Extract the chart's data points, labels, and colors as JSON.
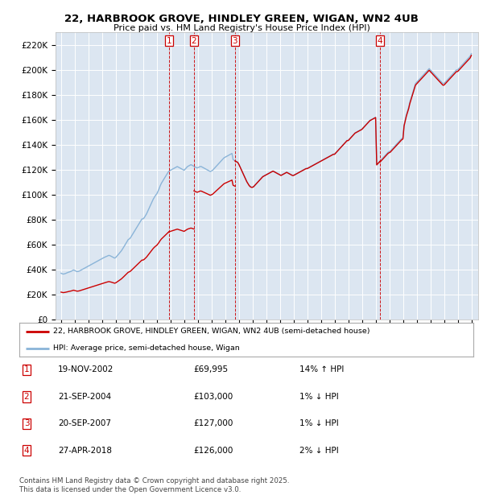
{
  "title": "22, HARBROOK GROVE, HINDLEY GREEN, WIGAN, WN2 4UB",
  "subtitle": "Price paid vs. HM Land Registry's House Price Index (HPI)",
  "background_color": "#dce6f1",
  "ylim": [
    0,
    230000
  ],
  "yticks": [
    0,
    20000,
    40000,
    60000,
    80000,
    100000,
    120000,
    140000,
    160000,
    180000,
    200000,
    220000
  ],
  "ytick_labels": [
    "£0",
    "£20K",
    "£40K",
    "£60K",
    "£80K",
    "£100K",
    "£120K",
    "£140K",
    "£160K",
    "£180K",
    "£200K",
    "£220K"
  ],
  "hpi_color": "#8ab4d8",
  "sale_color": "#cc0000",
  "vline_color": "#cc0000",
  "xlim_min": 1994.6,
  "xlim_max": 2025.5,
  "transaction_markers": [
    {
      "num": 1,
      "date_str": "19-NOV-2002",
      "date_x": 2002.88,
      "price": 69995,
      "pct": "14%",
      "dir": "↑"
    },
    {
      "num": 2,
      "date_str": "21-SEP-2004",
      "date_x": 2004.72,
      "price": 103000,
      "pct": "1%",
      "dir": "↓"
    },
    {
      "num": 3,
      "date_str": "20-SEP-2007",
      "date_x": 2007.72,
      "price": 127000,
      "pct": "1%",
      "dir": "↓"
    },
    {
      "num": 4,
      "date_str": "27-APR-2018",
      "date_x": 2018.32,
      "price": 126000,
      "pct": "2%",
      "dir": "↓"
    }
  ],
  "legend_label_sale": "22, HARBROOK GROVE, HINDLEY GREEN, WIGAN, WN2 4UB (semi-detached house)",
  "legend_label_hpi": "HPI: Average price, semi-detached house, Wigan",
  "footer": "Contains HM Land Registry data © Crown copyright and database right 2025.\nThis data is licensed under the Open Government Licence v3.0.",
  "hpi_raw": {
    "t": [
      1995.0,
      1995.083,
      1995.167,
      1995.25,
      1995.333,
      1995.417,
      1995.5,
      1995.583,
      1995.667,
      1995.75,
      1995.833,
      1995.917,
      1996.0,
      1996.083,
      1996.167,
      1996.25,
      1996.333,
      1996.417,
      1996.5,
      1996.583,
      1996.667,
      1996.75,
      1996.833,
      1996.917,
      1997.0,
      1997.083,
      1997.167,
      1997.25,
      1997.333,
      1997.417,
      1997.5,
      1997.583,
      1997.667,
      1997.75,
      1997.833,
      1997.917,
      1998.0,
      1998.083,
      1998.167,
      1998.25,
      1998.333,
      1998.417,
      1998.5,
      1998.583,
      1998.667,
      1998.75,
      1998.833,
      1998.917,
      1999.0,
      1999.083,
      1999.167,
      1999.25,
      1999.333,
      1999.417,
      1999.5,
      1999.583,
      1999.667,
      1999.75,
      1999.833,
      1999.917,
      2000.0,
      2000.083,
      2000.167,
      2000.25,
      2000.333,
      2000.417,
      2000.5,
      2000.583,
      2000.667,
      2000.75,
      2000.833,
      2000.917,
      2001.0,
      2001.083,
      2001.167,
      2001.25,
      2001.333,
      2001.417,
      2001.5,
      2001.583,
      2001.667,
      2001.75,
      2001.833,
      2001.917,
      2002.0,
      2002.083,
      2002.167,
      2002.25,
      2002.333,
      2002.417,
      2002.5,
      2002.583,
      2002.667,
      2002.75,
      2002.833,
      2002.917,
      2003.0,
      2003.083,
      2003.167,
      2003.25,
      2003.333,
      2003.417,
      2003.5,
      2003.583,
      2003.667,
      2003.75,
      2003.833,
      2003.917,
      2004.0,
      2004.083,
      2004.167,
      2004.25,
      2004.333,
      2004.417,
      2004.5,
      2004.583,
      2004.667,
      2004.75,
      2004.833,
      2004.917,
      2005.0,
      2005.083,
      2005.167,
      2005.25,
      2005.333,
      2005.417,
      2005.5,
      2005.583,
      2005.667,
      2005.75,
      2005.833,
      2005.917,
      2006.0,
      2006.083,
      2006.167,
      2006.25,
      2006.333,
      2006.417,
      2006.5,
      2006.583,
      2006.667,
      2006.75,
      2006.833,
      2006.917,
      2007.0,
      2007.083,
      2007.167,
      2007.25,
      2007.333,
      2007.417,
      2007.5,
      2007.583,
      2007.667,
      2007.75,
      2007.833,
      2007.917,
      2008.0,
      2008.083,
      2008.167,
      2008.25,
      2008.333,
      2008.417,
      2008.5,
      2008.583,
      2008.667,
      2008.75,
      2008.833,
      2008.917,
      2009.0,
      2009.083,
      2009.167,
      2009.25,
      2009.333,
      2009.417,
      2009.5,
      2009.583,
      2009.667,
      2009.75,
      2009.833,
      2009.917,
      2010.0,
      2010.083,
      2010.167,
      2010.25,
      2010.333,
      2010.417,
      2010.5,
      2010.583,
      2010.667,
      2010.75,
      2010.833,
      2010.917,
      2011.0,
      2011.083,
      2011.167,
      2011.25,
      2011.333,
      2011.417,
      2011.5,
      2011.583,
      2011.667,
      2011.75,
      2011.833,
      2011.917,
      2012.0,
      2012.083,
      2012.167,
      2012.25,
      2012.333,
      2012.417,
      2012.5,
      2012.583,
      2012.667,
      2012.75,
      2012.833,
      2012.917,
      2013.0,
      2013.083,
      2013.167,
      2013.25,
      2013.333,
      2013.417,
      2013.5,
      2013.583,
      2013.667,
      2013.75,
      2013.833,
      2013.917,
      2014.0,
      2014.083,
      2014.167,
      2014.25,
      2014.333,
      2014.417,
      2014.5,
      2014.583,
      2014.667,
      2014.75,
      2014.833,
      2014.917,
      2015.0,
      2015.083,
      2015.167,
      2015.25,
      2015.333,
      2015.417,
      2015.5,
      2015.583,
      2015.667,
      2015.75,
      2015.833,
      2015.917,
      2016.0,
      2016.083,
      2016.167,
      2016.25,
      2016.333,
      2016.417,
      2016.5,
      2016.583,
      2016.667,
      2016.75,
      2016.833,
      2016.917,
      2017.0,
      2017.083,
      2017.167,
      2017.25,
      2017.333,
      2017.417,
      2017.5,
      2017.583,
      2017.667,
      2017.75,
      2017.833,
      2017.917,
      2018.0,
      2018.083,
      2018.167,
      2018.25,
      2018.333,
      2018.417,
      2018.5,
      2018.583,
      2018.667,
      2018.75,
      2018.833,
      2018.917,
      2019.0,
      2019.083,
      2019.167,
      2019.25,
      2019.333,
      2019.417,
      2019.5,
      2019.583,
      2019.667,
      2019.75,
      2019.833,
      2019.917,
      2020.0,
      2020.083,
      2020.167,
      2020.25,
      2020.333,
      2020.417,
      2020.5,
      2020.583,
      2020.667,
      2020.75,
      2020.833,
      2020.917,
      2021.0,
      2021.083,
      2021.167,
      2021.25,
      2021.333,
      2021.417,
      2021.5,
      2021.583,
      2021.667,
      2021.75,
      2021.833,
      2021.917,
      2022.0,
      2022.083,
      2022.167,
      2022.25,
      2022.333,
      2022.417,
      2022.5,
      2022.583,
      2022.667,
      2022.75,
      2022.833,
      2022.917,
      2023.0,
      2023.083,
      2023.167,
      2023.25,
      2023.333,
      2023.417,
      2023.5,
      2023.583,
      2023.667,
      2023.75,
      2023.833,
      2023.917,
      2024.0,
      2024.083,
      2024.167,
      2024.25,
      2024.333,
      2024.417,
      2024.5,
      2024.583,
      2024.667,
      2024.75,
      2024.833,
      2024.917,
      2025.0
    ],
    "v": [
      37000,
      36600,
      36300,
      36500,
      36800,
      37200,
      37600,
      37900,
      38200,
      38600,
      39100,
      39600,
      39200,
      38700,
      38300,
      38400,
      38700,
      39200,
      39700,
      40200,
      40700,
      41200,
      41700,
      42200,
      42700,
      43200,
      43700,
      44200,
      44700,
      45200,
      45700,
      46200,
      46700,
      47200,
      47700,
      48200,
      48700,
      49200,
      49700,
      50100,
      50500,
      50900,
      51300,
      51000,
      50600,
      50100,
      49600,
      49100,
      49600,
      50600,
      51700,
      52800,
      53900,
      55000,
      56400,
      57900,
      59400,
      61000,
      62500,
      64000,
      64500,
      65500,
      67000,
      68500,
      70000,
      71500,
      73000,
      74500,
      76000,
      77500,
      79000,
      80500,
      80500,
      81500,
      83000,
      84500,
      86500,
      88500,
      90500,
      92500,
      94500,
      96500,
      98000,
      99500,
      100500,
      102500,
      104500,
      107000,
      109000,
      110500,
      112000,
      113500,
      115000,
      116500,
      118000,
      119000,
      119500,
      120000,
      120500,
      121000,
      121500,
      122000,
      122500,
      122000,
      121500,
      121000,
      120500,
      120000,
      119500,
      120500,
      121500,
      122500,
      123000,
      123500,
      124000,
      123500,
      123000,
      122500,
      122000,
      121500,
      121500,
      122000,
      122500,
      122500,
      122000,
      121500,
      121000,
      120500,
      120000,
      119500,
      119000,
      118500,
      119000,
      119500,
      120500,
      121500,
      122500,
      123500,
      124500,
      125500,
      126500,
      127500,
      128500,
      129500,
      130000,
      130500,
      131000,
      131500,
      132000,
      132500,
      133000,
      128000,
      127500,
      127000,
      126500,
      126000,
      124500,
      122500,
      120500,
      118500,
      116500,
      114500,
      112500,
      110500,
      109000,
      107500,
      106500,
      106000,
      106000,
      106500,
      107500,
      108500,
      109500,
      110500,
      111500,
      112500,
      113500,
      114500,
      115000,
      115500,
      116000,
      116500,
      117000,
      117500,
      118000,
      118500,
      119000,
      118500,
      118000,
      117500,
      117000,
      116500,
      116000,
      115500,
      116000,
      116500,
      117000,
      117500,
      118000,
      117500,
      117000,
      116500,
      116000,
      115500,
      115500,
      116000,
      116500,
      117000,
      117500,
      118000,
      118500,
      119000,
      119500,
      120000,
      120500,
      121000,
      121000,
      121500,
      122000,
      122500,
      123000,
      123500,
      124000,
      124500,
      125000,
      125500,
      126000,
      126500,
      127000,
      127500,
      128000,
      128500,
      129000,
      129500,
      130000,
      130500,
      131000,
      131500,
      132000,
      132500,
      132500,
      133500,
      134500,
      135500,
      136500,
      137500,
      138500,
      139500,
      140500,
      141500,
      142500,
      143500,
      143500,
      144500,
      145500,
      146500,
      147500,
      148500,
      149500,
      150000,
      150500,
      151000,
      151500,
      152000,
      152500,
      153500,
      154500,
      155500,
      156500,
      157500,
      158500,
      159500,
      160000,
      160500,
      161000,
      161500,
      162000,
      124000,
      125000,
      126000,
      127000,
      128000,
      129000,
      130000,
      131000,
      132000,
      133000,
      134000,
      134500,
      135000,
      136000,
      137000,
      138000,
      139000,
      140000,
      141000,
      142000,
      143000,
      144000,
      145000,
      145500,
      156000,
      160000,
      164000,
      167000,
      170000,
      174000,
      177000,
      180000,
      183000,
      186000,
      189000,
      190000,
      191000,
      192000,
      193000,
      194000,
      195000,
      196000,
      197000,
      198000,
      199000,
      200000,
      201000,
      200000,
      199000,
      198000,
      197000,
      196000,
      195000,
      194000,
      193000,
      192000,
      191000,
      190000,
      189000,
      189000,
      190000,
      191000,
      192000,
      193000,
      194000,
      195000,
      196000,
      197000,
      198000,
      199000,
      200000,
      200000,
      201000,
      202000,
      203000,
      204000,
      205000,
      206000,
      207000,
      208000,
      209000,
      210000,
      211000,
      213000
    ]
  }
}
